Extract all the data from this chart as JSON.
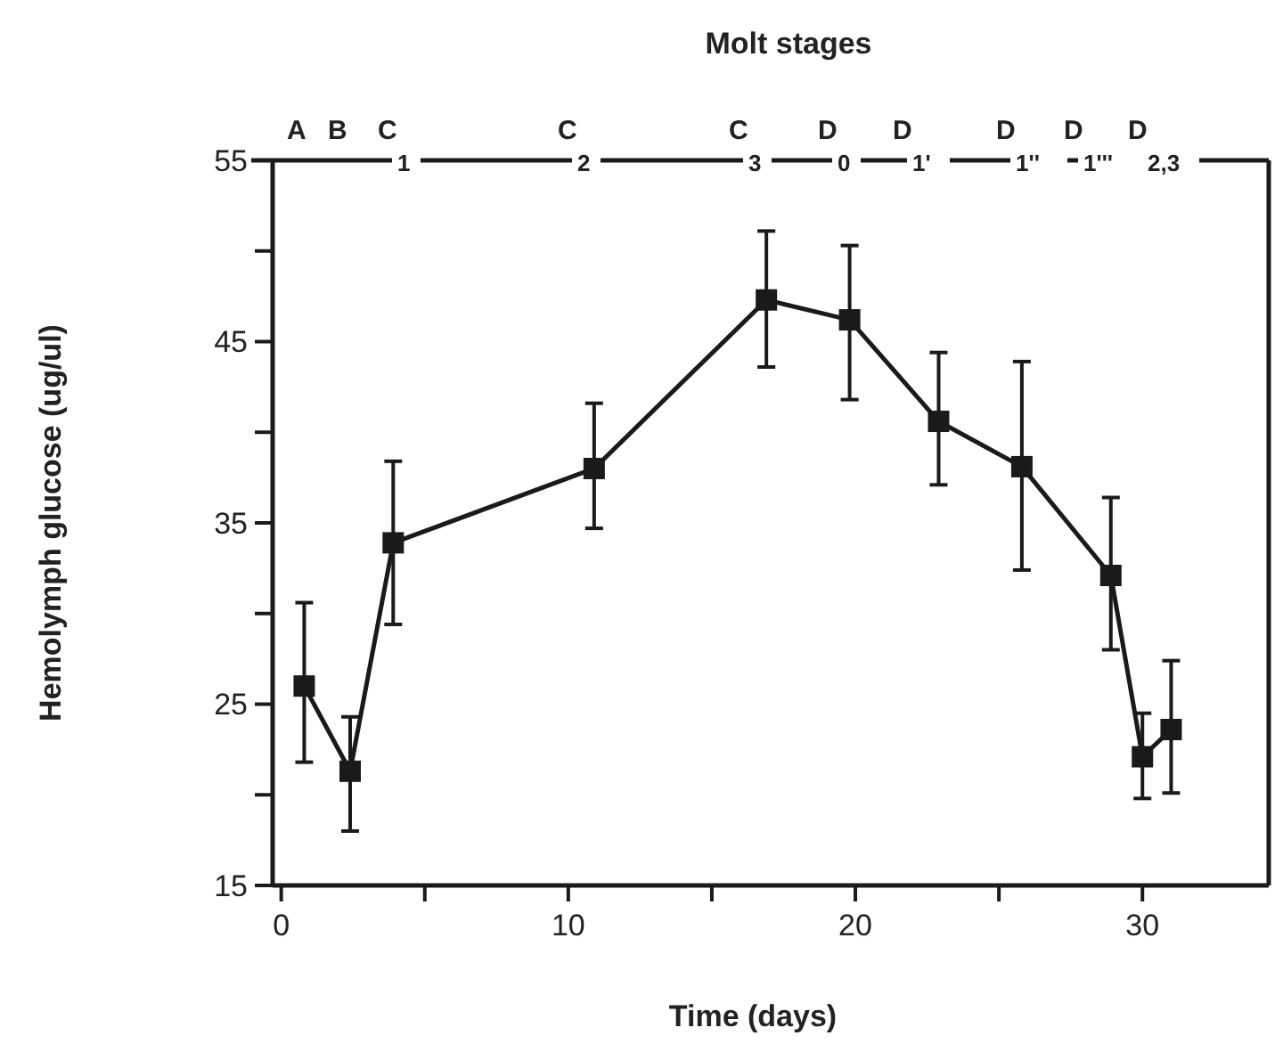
{
  "chart_data": {
    "type": "line",
    "xlabel": "Time (days)",
    "ylabel": "Hemolymph glucose (ug/ul)",
    "x2label": "Molt stages",
    "x": [
      0.8,
      2.4,
      3.9,
      10.9,
      16.9,
      19.8,
      22.9,
      25.8,
      28.9,
      30.0,
      31.0
    ],
    "series": [
      {
        "color": "#1a1a1a",
        "values": [
          26.0,
          21.3,
          33.9,
          38.0,
          47.3,
          46.2,
          40.6,
          38.1,
          32.1,
          22.1,
          23.6
        ],
        "errors": [
          [
            21.8,
            30.6
          ],
          [
            18.0,
            24.3
          ],
          [
            29.4,
            38.4
          ],
          [
            34.7,
            41.6
          ],
          [
            43.6,
            51.1
          ],
          [
            41.8,
            50.3
          ],
          [
            37.1,
            44.4
          ],
          [
            32.4,
            43.9
          ],
          [
            28.0,
            36.4
          ],
          [
            19.8,
            24.5
          ],
          [
            20.1,
            27.4
          ]
        ]
      }
    ],
    "xlim": [
      -0.3,
      34.4
    ],
    "xticks": [
      0,
      {
        "value": 5,
        "label": null
      },
      10,
      {
        "value": 15,
        "label": null
      },
      20,
      {
        "value": 25,
        "label": null
      },
      30
    ],
    "ylim": [
      15,
      55
    ],
    "yticks": [
      15,
      {
        "value": 20,
        "label": null
      },
      25,
      {
        "value": 30,
        "label": null
      },
      35,
      {
        "value": 40,
        "label": null
      },
      45,
      {
        "value": 50,
        "label": null
      },
      55
    ],
    "annotations": [
      "A",
      "B",
      "C$_{1}$",
      "C$_{2}$",
      "C$_{3}$",
      "D$_{0}$",
      "D$_{1'}$",
      "D$_{1''}$",
      "D$_{1'''}$",
      "D$_{2,3}$"
    ],
    "marker": "square",
    "line_style": "solid"
  }
}
